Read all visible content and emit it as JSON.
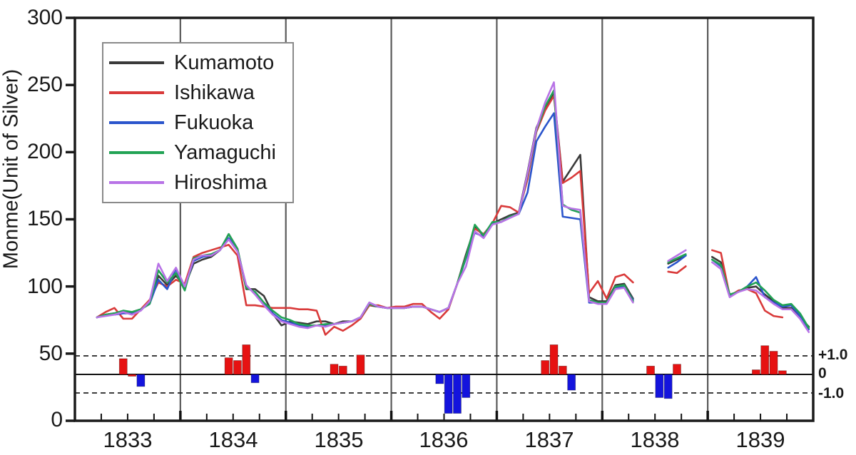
{
  "figure": {
    "ylabel": "Monme(Unit of Silver)",
    "y_tick_labels": [
      "300",
      "250",
      "200",
      "150",
      "100",
      "50",
      "0"
    ],
    "x_tick_labels": [
      "1833",
      "1834",
      "1835",
      "1836",
      "1837",
      "1838",
      "1839"
    ],
    "right_axis_labels": [
      "+1.0",
      "0",
      "-1.0"
    ]
  },
  "chart_data": {
    "type": "line+bar",
    "title": "",
    "ylabel": "Monme(Unit of Silver)",
    "ylim": [
      0,
      300
    ],
    "yticks": [
      0,
      50,
      100,
      150,
      200,
      250,
      300
    ],
    "x_years": [
      1833,
      1834,
      1835,
      1836,
      1837,
      1838,
      1839
    ],
    "x_start": {
      "year": 1833,
      "month": 3
    },
    "x_resolution": "monthly",
    "grid": "vertical-year-separators",
    "legend_position": "upper-left",
    "series": [
      {
        "name": "Kumamoto",
        "color": "#3a3a3a",
        "values": [
          77,
          79,
          80,
          81,
          81,
          83,
          87,
          108,
          101,
          108,
          100,
          117,
          120,
          122,
          127,
          139,
          128,
          98,
          98,
          93,
          80,
          71,
          74,
          73,
          72,
          74,
          74,
          72,
          74,
          74,
          77,
          86,
          85,
          84,
          84,
          84,
          85,
          85,
          83,
          81,
          84,
          102,
          124,
          144,
          138,
          147,
          150,
          153,
          155,
          185,
          218,
          233,
          244,
          178,
          188,
          198,
          92,
          89,
          89,
          101,
          102,
          91,
          null,
          null,
          null,
          117,
          120,
          123,
          null,
          null,
          122,
          118,
          94,
          96,
          99,
          100,
          94,
          89,
          84,
          84,
          77,
          70
        ]
      },
      {
        "name": "Ishikawa",
        "color": "#d93a3a",
        "values": [
          77,
          81,
          84,
          76,
          76,
          83,
          90,
          103,
          100,
          105,
          102,
          122,
          125,
          127,
          129,
          131,
          123,
          86,
          86,
          85,
          84,
          84,
          84,
          83,
          83,
          82,
          64,
          70,
          67,
          71,
          76,
          86,
          86,
          84,
          85,
          85,
          87,
          87,
          81,
          76,
          83,
          102,
          122,
          143,
          139,
          147,
          160,
          159,
          155,
          180,
          215,
          231,
          242,
          177,
          181,
          186,
          95,
          104,
          91,
          107,
          109,
          103,
          null,
          null,
          null,
          111,
          110,
          115,
          null,
          null,
          127,
          125,
          93,
          97,
          98,
          95,
          82,
          78,
          77,
          null,
          null,
          null
        ]
      },
      {
        "name": "Fukuoka",
        "color": "#2b55cc",
        "values": [
          77,
          79,
          79,
          80,
          80,
          83,
          87,
          105,
          98,
          113,
          99,
          119,
          122,
          123,
          127,
          136,
          127,
          100,
          95,
          87,
          80,
          75,
          73,
          71,
          70,
          71,
          71,
          72,
          73,
          74,
          77,
          88,
          85,
          84,
          84,
          84,
          85,
          85,
          83,
          81,
          84,
          102,
          121,
          140,
          137,
          147,
          148,
          152,
          154,
          170,
          208,
          219,
          229,
          152,
          151,
          150,
          88,
          88,
          88,
          99,
          100,
          90,
          null,
          null,
          null,
          114,
          118,
          123,
          null,
          null,
          120,
          115,
          93,
          96,
          100,
          107,
          92,
          88,
          85,
          86,
          78,
          68
        ]
      },
      {
        "name": "Yamaguchi",
        "color": "#22a355",
        "values": [
          77,
          79,
          80,
          82,
          81,
          83,
          87,
          112,
          103,
          110,
          97,
          121,
          123,
          124,
          127,
          139,
          128,
          99,
          96,
          88,
          82,
          77,
          75,
          72,
          71,
          71,
          72,
          72,
          73,
          74,
          77,
          87,
          85,
          84,
          84,
          84,
          85,
          85,
          83,
          81,
          84,
          102,
          122,
          146,
          138,
          148,
          148,
          152,
          154,
          183,
          216,
          234,
          246,
          161,
          157,
          155,
          90,
          88,
          88,
          100,
          101,
          89,
          null,
          null,
          null,
          118,
          121,
          124,
          null,
          null,
          120,
          116,
          94,
          96,
          100,
          103,
          97,
          90,
          86,
          87,
          80,
          69
        ]
      },
      {
        "name": "Hiroshima",
        "color": "#b873e6",
        "values": [
          77,
          78,
          79,
          81,
          79,
          82,
          89,
          117,
          104,
          114,
          100,
          120,
          123,
          123,
          127,
          135,
          126,
          101,
          94,
          86,
          79,
          74,
          72,
          70,
          69,
          71,
          70,
          72,
          73,
          74,
          77,
          88,
          85,
          84,
          84,
          84,
          85,
          85,
          83,
          81,
          84,
          102,
          115,
          141,
          136,
          146,
          148,
          151,
          154,
          184,
          217,
          237,
          252,
          160,
          158,
          157,
          89,
          87,
          87,
          98,
          99,
          88,
          null,
          null,
          null,
          119,
          123,
          127,
          null,
          null,
          118,
          113,
          92,
          96,
          98,
          97,
          92,
          87,
          83,
          83,
          76,
          66
        ]
      }
    ],
    "bar_axis": {
      "labels": [
        "+1.0",
        "0",
        "-1.0"
      ],
      "unit_span": 1.0
    },
    "bar_colors": {
      "red": "#e61212",
      "blue": "#1414dd"
    },
    "bars": [
      {
        "year": 1833,
        "month": 6,
        "value": 0.85,
        "color": "red"
      },
      {
        "year": 1833,
        "month": 7,
        "value": -0.1,
        "color": "red"
      },
      {
        "year": 1833,
        "month": 8,
        "value": -0.65,
        "color": "blue"
      },
      {
        "year": 1834,
        "month": 6,
        "value": 0.9,
        "color": "red"
      },
      {
        "year": 1834,
        "month": 7,
        "value": 0.75,
        "color": "red"
      },
      {
        "year": 1834,
        "month": 8,
        "value": 1.6,
        "color": "red"
      },
      {
        "year": 1834,
        "month": 9,
        "value": -0.45,
        "color": "blue"
      },
      {
        "year": 1835,
        "month": 6,
        "value": 0.55,
        "color": "red"
      },
      {
        "year": 1835,
        "month": 7,
        "value": 0.45,
        "color": "red"
      },
      {
        "year": 1835,
        "month": 9,
        "value": 1.05,
        "color": "red"
      },
      {
        "year": 1836,
        "month": 6,
        "value": -0.5,
        "color": "blue"
      },
      {
        "year": 1836,
        "month": 7,
        "value": -2.1,
        "color": "blue"
      },
      {
        "year": 1836,
        "month": 8,
        "value": -2.1,
        "color": "blue"
      },
      {
        "year": 1836,
        "month": 9,
        "value": -1.25,
        "color": "blue"
      },
      {
        "year": 1837,
        "month": 6,
        "value": 0.75,
        "color": "red"
      },
      {
        "year": 1837,
        "month": 7,
        "value": 1.6,
        "color": "red"
      },
      {
        "year": 1837,
        "month": 8,
        "value": 0.45,
        "color": "red"
      },
      {
        "year": 1837,
        "month": 9,
        "value": -0.85,
        "color": "blue"
      },
      {
        "year": 1838,
        "month": 6,
        "value": 0.45,
        "color": "red"
      },
      {
        "year": 1838,
        "month": 7,
        "value": -1.25,
        "color": "blue"
      },
      {
        "year": 1838,
        "month": 8,
        "value": -1.3,
        "color": "blue"
      },
      {
        "year": 1838,
        "month": 9,
        "value": 0.55,
        "color": "red"
      },
      {
        "year": 1839,
        "month": 6,
        "value": 0.25,
        "color": "red"
      },
      {
        "year": 1839,
        "month": 7,
        "value": 1.55,
        "color": "red"
      },
      {
        "year": 1839,
        "month": 8,
        "value": 1.25,
        "color": "red"
      },
      {
        "year": 1839,
        "month": 9,
        "value": 0.2,
        "color": "red"
      }
    ]
  }
}
